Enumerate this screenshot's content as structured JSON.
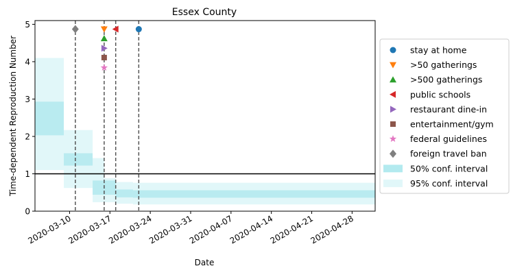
{
  "chart_data": {
    "type": "line",
    "title": "Essex County",
    "xlabel": "Date",
    "ylabel": "Time-dependent Reproduction Number",
    "xlim": [
      "2020-03-04",
      "2020-05-02"
    ],
    "ylim": [
      0,
      5.1
    ],
    "x_ticks": [
      "2020-03-10",
      "2020-03-17",
      "2020-03-24",
      "2020-03-31",
      "2020-04-07",
      "2020-04-14",
      "2020-04-21",
      "2020-04-28"
    ],
    "y_ticks": [
      "0",
      "1",
      "2",
      "3",
      "4",
      "5"
    ],
    "reference_line": {
      "y": 1,
      "color": "#000000"
    },
    "conf_50": [
      {
        "start": "2020-03-04",
        "end": "2020-03-09",
        "low": 2.03,
        "high": 2.93
      },
      {
        "start": "2020-03-09",
        "end": "2020-03-14",
        "low": 1.22,
        "high": 1.55
      },
      {
        "start": "2020-03-14",
        "end": "2020-03-18",
        "low": 0.44,
        "high": 0.82
      },
      {
        "start": "2020-03-18",
        "end": "2020-03-21",
        "low": 0.37,
        "high": 0.58
      },
      {
        "start": "2020-03-21",
        "end": "2020-05-02",
        "low": 0.36,
        "high": 0.56
      }
    ],
    "conf_95": [
      {
        "start": "2020-03-04",
        "end": "2020-03-09",
        "low": 1.1,
        "high": 4.1
      },
      {
        "start": "2020-03-09",
        "end": "2020-03-14",
        "low": 0.62,
        "high": 2.17
      },
      {
        "start": "2020-03-14",
        "end": "2020-03-16",
        "low": 0.24,
        "high": 1.42
      },
      {
        "start": "2020-03-16",
        "end": "2020-03-18",
        "low": 0.24,
        "high": 0.88
      },
      {
        "start": "2020-03-18",
        "end": "2020-03-21",
        "low": 0.2,
        "high": 0.78
      },
      {
        "start": "2020-03-21",
        "end": "2020-05-02",
        "low": 0.18,
        "high": 0.76
      }
    ],
    "interventions": [
      {
        "name": "stay at home",
        "date": "2020-03-22",
        "y": 4.87,
        "marker": "circle",
        "color": "#1f77b4"
      },
      {
        "name": ">50 gatherings",
        "date": "2020-03-16",
        "y": 4.87,
        "marker": "triangle-down",
        "color": "#ff7f0e"
      },
      {
        "name": ">500 gatherings",
        "date": "2020-03-16",
        "y": 4.62,
        "marker": "triangle-up",
        "color": "#2ca02c"
      },
      {
        "name": "public schools",
        "date": "2020-03-18",
        "y": 4.87,
        "marker": "triangle-left",
        "color": "#d62728"
      },
      {
        "name": "restaurant dine-in",
        "date": "2020-03-16",
        "y": 4.36,
        "marker": "triangle-right",
        "color": "#9467bd"
      },
      {
        "name": "entertainment/gym",
        "date": "2020-03-16",
        "y": 4.11,
        "marker": "square",
        "color": "#8c564b"
      },
      {
        "name": "federal guidelines",
        "date": "2020-03-16",
        "y": 3.84,
        "marker": "star",
        "color": "#e377c2"
      },
      {
        "name": "foreign travel ban",
        "date": "2020-03-11",
        "y": 4.87,
        "marker": "diamond",
        "color": "#7f7f7f"
      }
    ],
    "vlines": [
      "2020-03-11",
      "2020-03-16",
      "2020-03-18",
      "2020-03-22"
    ],
    "legend": {
      "position": "right",
      "items": [
        {
          "label": "stay at home",
          "kind": "circle",
          "color": "#1f77b4"
        },
        {
          "label": ">50 gatherings",
          "kind": "triangle-down",
          "color": "#ff7f0e"
        },
        {
          "label": ">500 gatherings",
          "kind": "triangle-up",
          "color": "#2ca02c"
        },
        {
          "label": "public schools",
          "kind": "triangle-left",
          "color": "#d62728"
        },
        {
          "label": "restaurant dine-in",
          "kind": "triangle-right",
          "color": "#9467bd"
        },
        {
          "label": "entertainment/gym",
          "kind": "square",
          "color": "#8c564b"
        },
        {
          "label": "federal guidelines",
          "kind": "star",
          "color": "#e377c2"
        },
        {
          "label": "foreign travel ban",
          "kind": "diamond",
          "color": "#7f7f7f"
        },
        {
          "label": "50% conf. interval",
          "kind": "patch50",
          "color": "#17becf"
        },
        {
          "label": "95% conf. interval",
          "kind": "patch95",
          "color": "#17becf"
        }
      ]
    }
  }
}
